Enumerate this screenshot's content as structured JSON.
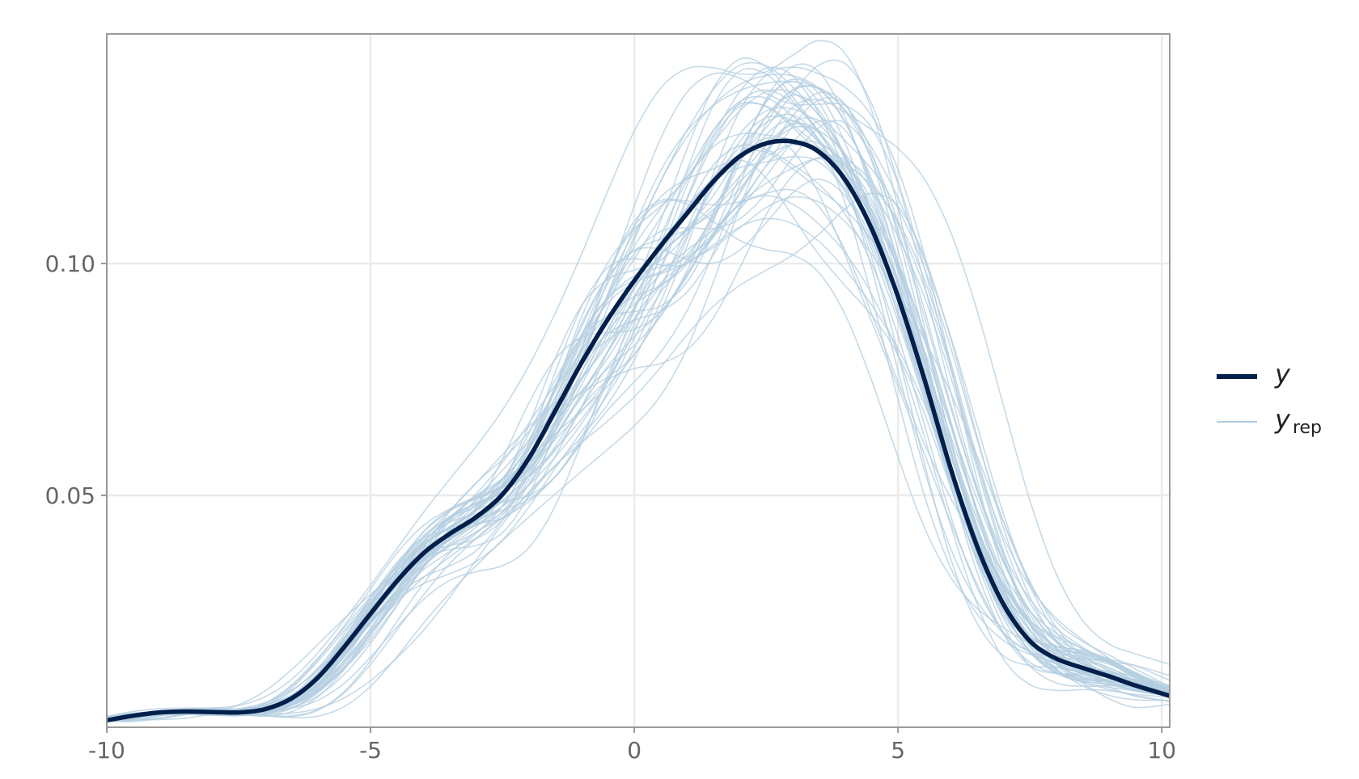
{
  "chart_data": {
    "type": "line",
    "title": "",
    "xlabel": "",
    "ylabel": "",
    "xlim": [
      -10,
      10.15
    ],
    "ylim": [
      0,
      0.1495
    ],
    "x_ticks": [
      -10,
      -5,
      0,
      5,
      10
    ],
    "x_tick_labels": [
      "-10",
      "-5",
      "0",
      "5",
      "10"
    ],
    "y_ticks": [
      0.05,
      0.1
    ],
    "y_tick_labels": [
      "0.05",
      "0.10"
    ],
    "grid": true,
    "legend_position": "right",
    "colors": {
      "y": "#011f4b",
      "y_rep": "#b3cde0",
      "grid": "#ebebeb",
      "frame": "#999999",
      "tick_text": "#666666"
    },
    "legend": [
      {
        "key": "y",
        "label": "y",
        "sub": ""
      },
      {
        "key": "y_rep",
        "label": "y",
        "sub": "rep"
      }
    ],
    "series": [
      {
        "name": "y",
        "x": [
          -10,
          -9.5,
          -9,
          -8.5,
          -8,
          -7.5,
          -7,
          -6.5,
          -6,
          -5.5,
          -5,
          -4.5,
          -4,
          -3.5,
          -3,
          -2.5,
          -2,
          -1.5,
          -1,
          -0.5,
          0,
          0.5,
          1,
          1.5,
          2,
          2.5,
          3,
          3.5,
          4,
          4.5,
          5,
          5.5,
          6,
          6.5,
          7,
          7.5,
          8,
          8.5,
          9,
          9.5,
          10.15
        ],
        "y": [
          0.0015,
          0.0025,
          0.0032,
          0.0034,
          0.0033,
          0.0032,
          0.0039,
          0.0062,
          0.0107,
          0.0173,
          0.0245,
          0.0315,
          0.0375,
          0.0417,
          0.0453,
          0.0502,
          0.058,
          0.0682,
          0.0786,
          0.088,
          0.0963,
          0.1038,
          0.1108,
          0.1177,
          0.1231,
          0.1259,
          0.1263,
          0.1241,
          0.118,
          0.1075,
          0.0928,
          0.075,
          0.0557,
          0.039,
          0.0265,
          0.0186,
          0.0148,
          0.0128,
          0.011,
          0.009,
          0.0068
        ]
      }
    ]
  }
}
